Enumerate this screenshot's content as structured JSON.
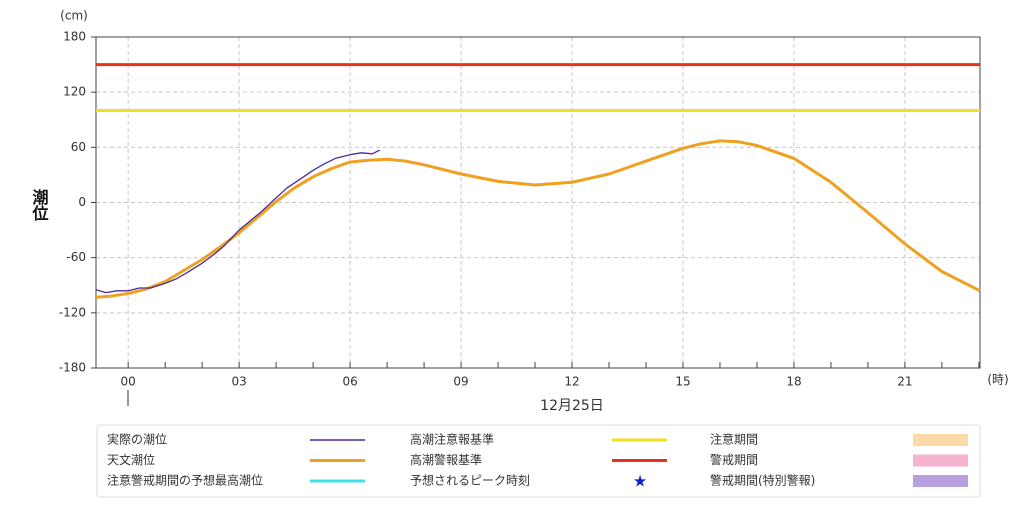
{
  "chart_data": {
    "type": "line",
    "y_label": "潮位",
    "y_unit": "(cm)",
    "x_unit": "(時)",
    "date_label": "12月25日",
    "xlim": [
      -0.87,
      23.03
    ],
    "xticks": [
      {
        "value": 0,
        "label": "00"
      },
      {
        "value": 3,
        "label": "03"
      },
      {
        "value": 6,
        "label": "06"
      },
      {
        "value": 9,
        "label": "09"
      },
      12,
      15,
      18,
      21
    ],
    "xminorticks": [
      0,
      1,
      2,
      3,
      4,
      5,
      6,
      7,
      8,
      9,
      10,
      11,
      12,
      13,
      14,
      15,
      16,
      17,
      18,
      19,
      20,
      21,
      22,
      23
    ],
    "ylim": [
      -180,
      180
    ],
    "yticks": [
      -180,
      -120,
      -60,
      0,
      60,
      120,
      180
    ],
    "grid": true,
    "series": [
      {
        "name": "実際の潮位",
        "color": "#4b2aa0",
        "width": 1.3,
        "x": [
          -0.87,
          -0.6,
          -0.3,
          0,
          0.3,
          0.6,
          1,
          1.3,
          1.6,
          2,
          2.3,
          2.6,
          3,
          3.3,
          3.6,
          4,
          4.3,
          4.6,
          5,
          5.3,
          5.6,
          6,
          6.3,
          6.6,
          6.8
        ],
        "values": [
          -95,
          -98,
          -96,
          -96,
          -93,
          -93,
          -88,
          -83,
          -76,
          -66,
          -57,
          -47,
          -30,
          -20,
          -10,
          5,
          16,
          24,
          35,
          42,
          48,
          52,
          54,
          53,
          57
        ]
      },
      {
        "name": "天文潮位",
        "color": "#f0a020",
        "width": 3,
        "x": [
          -0.87,
          -0.5,
          0,
          0.5,
          1,
          1.5,
          2,
          2.5,
          3,
          3.5,
          4,
          4.5,
          5,
          5.5,
          6,
          6.5,
          7,
          7.5,
          8,
          9,
          10,
          11,
          12,
          13,
          14,
          15,
          15.5,
          16,
          16.5,
          17,
          18,
          19,
          20,
          21,
          22,
          23.03
        ],
        "values": [
          -103,
          -102,
          -99,
          -94,
          -86,
          -74,
          -62,
          -48,
          -33,
          -16,
          1,
          16,
          28,
          37,
          44,
          46,
          47,
          45,
          41,
          31,
          23,
          19,
          22,
          31,
          45,
          59,
          64,
          67,
          66,
          62,
          48,
          22,
          -11,
          -45,
          -75,
          -96
        ]
      }
    ],
    "thresholds": [
      {
        "name": "高潮注意報基準",
        "value": 100,
        "color": "#f0e020"
      },
      {
        "name": "高潮警報基準",
        "value": 150,
        "color": "#e8321e"
      }
    ],
    "legend_extra": [
      {
        "name": "注意警戒期間の予想最高潮位",
        "color": "#40e0e8",
        "symbol": "line"
      },
      {
        "name": "予想されるピーク時刻",
        "color": "#1020d0",
        "symbol": "star"
      },
      {
        "name": "注意期間",
        "color": "#fbd9a8",
        "symbol": "box"
      },
      {
        "name": "警戒期間",
        "color": "#f6b3cf",
        "symbol": "box"
      },
      {
        "name": "警戒期間(特別警報)",
        "color": "#b9a0e0",
        "symbol": "box"
      }
    ]
  }
}
